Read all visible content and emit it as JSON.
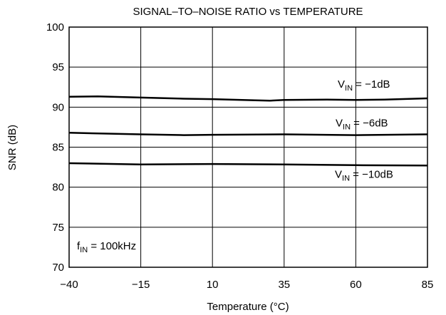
{
  "chart_data": {
    "type": "line",
    "title": "SIGNAL–TO–NOISE RATIO vs  TEMPERATURE",
    "xlabel": "Temperature (°C)",
    "ylabel": "SNR (dB)",
    "xlim": [
      -40,
      85
    ],
    "ylim": [
      70,
      100
    ],
    "x_ticks": [
      -40,
      -15,
      10,
      35,
      60,
      85
    ],
    "x_tick_labels": [
      "−40",
      "−15",
      "10",
      "35",
      "60",
      "85"
    ],
    "y_ticks": [
      70,
      75,
      80,
      85,
      90,
      95,
      100
    ],
    "y_tick_labels": [
      "70",
      "75",
      "80",
      "85",
      "90",
      "95",
      "100"
    ],
    "grid": true,
    "series": [
      {
        "label_main": "V",
        "label_sub": "IN",
        "label_rest": " = −1dB",
        "x": [
          -40,
          -30,
          -15,
          0,
          10,
          25,
          30,
          35,
          50,
          60,
          70,
          85
        ],
        "y": [
          91.3,
          91.35,
          91.2,
          91.05,
          91.0,
          90.85,
          90.8,
          90.9,
          90.95,
          90.9,
          90.95,
          91.1
        ]
      },
      {
        "label_main": "V",
        "label_sub": "IN",
        "label_rest": " = −6dB",
        "x": [
          -40,
          -15,
          0,
          10,
          35,
          60,
          85
        ],
        "y": [
          86.8,
          86.6,
          86.5,
          86.55,
          86.6,
          86.5,
          86.6
        ]
      },
      {
        "label_main": "V",
        "label_sub": "IN",
        "label_rest": " = −10dB",
        "x": [
          -40,
          -15,
          10,
          35,
          60,
          85
        ],
        "y": [
          83.0,
          82.85,
          82.9,
          82.85,
          82.75,
          82.7
        ]
      }
    ],
    "annotation": {
      "main": "f",
      "sub": "IN",
      "rest": " = 100kHz"
    }
  }
}
